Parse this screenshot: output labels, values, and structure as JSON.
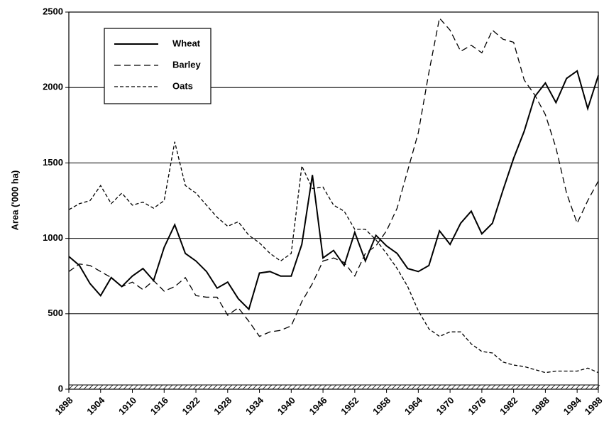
{
  "chart_data": {
    "type": "line",
    "ylabel": "Area ('000 ha)",
    "x": [
      1898,
      1900,
      1902,
      1904,
      1906,
      1908,
      1910,
      1912,
      1914,
      1916,
      1918,
      1920,
      1922,
      1924,
      1926,
      1928,
      1930,
      1932,
      1934,
      1936,
      1938,
      1940,
      1942,
      1944,
      1946,
      1948,
      1950,
      1952,
      1954,
      1956,
      1958,
      1960,
      1962,
      1964,
      1966,
      1968,
      1970,
      1972,
      1974,
      1976,
      1978,
      1980,
      1982,
      1984,
      1986,
      1988,
      1990,
      1992,
      1994,
      1996,
      1998
    ],
    "series": [
      {
        "name": "Wheat",
        "color": "#000000",
        "style": "solid",
        "values": [
          880,
          820,
          700,
          620,
          740,
          680,
          750,
          800,
          720,
          940,
          1090,
          900,
          850,
          780,
          670,
          710,
          600,
          530,
          770,
          780,
          750,
          750,
          960,
          1420,
          870,
          920,
          820,
          1040,
          850,
          1020,
          950,
          900,
          800,
          780,
          820,
          1050,
          960,
          1100,
          1180,
          1030,
          1100,
          1320,
          1530,
          1710,
          1940,
          2030,
          1900,
          2060,
          2110,
          1860,
          2080
        ]
      },
      {
        "name": "Barley",
        "color": "#000000",
        "style": "long-dash",
        "values": [
          780,
          830,
          820,
          780,
          740,
          680,
          710,
          660,
          720,
          650,
          680,
          740,
          620,
          610,
          610,
          490,
          540,
          450,
          350,
          380,
          390,
          420,
          580,
          700,
          850,
          870,
          840,
          750,
          900,
          950,
          1050,
          1200,
          1450,
          1700,
          2100,
          2460,
          2380,
          2240,
          2280,
          2230,
          2380,
          2320,
          2300,
          2050,
          1950,
          1820,
          1600,
          1300,
          1100,
          1250,
          1380
        ]
      },
      {
        "name": "Oats",
        "color": "#000000",
        "style": "short-dash",
        "values": [
          1190,
          1230,
          1250,
          1350,
          1230,
          1300,
          1220,
          1240,
          1200,
          1250,
          1640,
          1350,
          1300,
          1220,
          1140,
          1080,
          1110,
          1020,
          970,
          900,
          850,
          900,
          1480,
          1330,
          1340,
          1220,
          1180,
          1060,
          1060,
          990,
          900,
          800,
          680,
          520,
          400,
          350,
          380,
          380,
          300,
          250,
          240,
          180,
          160,
          150,
          130,
          110,
          120,
          120,
          120,
          140,
          110
        ]
      }
    ],
    "xlim": [
      1898,
      1998
    ],
    "xticks": [
      1898,
      1904,
      1910,
      1916,
      1922,
      1928,
      1934,
      1940,
      1946,
      1952,
      1958,
      1964,
      1970,
      1976,
      1982,
      1988,
      1994,
      1998
    ],
    "ylim": [
      0,
      2500
    ],
    "yticks": [
      0,
      500,
      1000,
      1500,
      2000,
      2500
    ],
    "grid": true,
    "legend": "upper-left"
  }
}
